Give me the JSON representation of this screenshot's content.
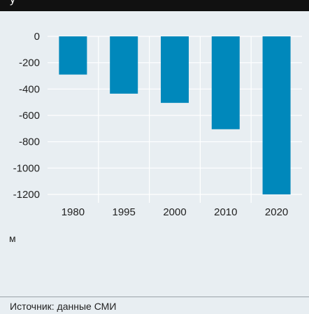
{
  "header": {
    "title": "у"
  },
  "chart_data": {
    "type": "bar",
    "categories": [
      "1980",
      "1995",
      "2000",
      "2010",
      "2020"
    ],
    "values": [
      -290,
      -435,
      -505,
      -705,
      -1200
    ],
    "ylim": [
      -1200,
      0
    ],
    "yticks": [
      0,
      -200,
      -400,
      -600,
      -800,
      -1000,
      -1200
    ],
    "ytick_labels": [
      "0",
      "-200",
      "-400",
      "-600",
      "-800",
      "-1000",
      "-1200"
    ],
    "grid": true,
    "bar_color": "#0088bb",
    "grid_color": "#ffffff"
  },
  "unit_label": "м",
  "source": "Источник: данные СМИ"
}
